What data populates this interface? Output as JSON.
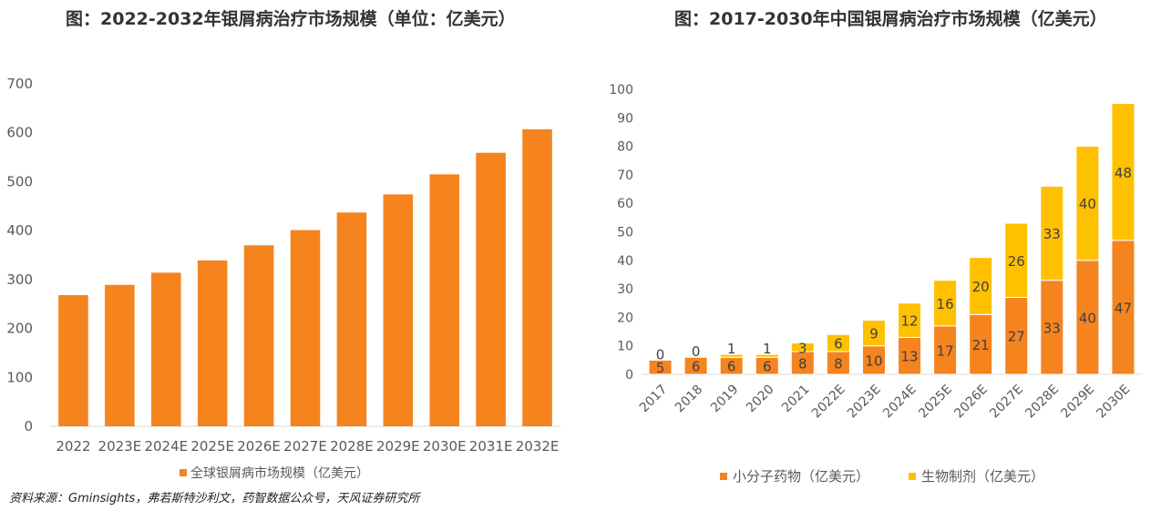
{
  "source_note": "资料来源：Gminsights，弗若斯特沙利文，药智数据公众号，天风证券研究所",
  "chart_data": [
    {
      "type": "bar",
      "title": "图：2022-2032年银屑病治疗市场规模（单位：亿美元）",
      "categories": [
        "2022",
        "2023E",
        "2024E",
        "2025E",
        "2026E",
        "2027E",
        "2028E",
        "2029E",
        "2030E",
        "2031E",
        "2032E"
      ],
      "series": [
        {
          "name": "全球银屑病市场规模（亿美元）",
          "values": [
            268,
            289,
            314,
            339,
            370,
            401,
            437,
            474,
            515,
            559,
            607
          ]
        }
      ],
      "yticks": [
        "0",
        "100",
        "200",
        "300",
        "400",
        "500",
        "600",
        "700"
      ],
      "ylim": [
        0,
        700
      ],
      "grid": false,
      "legend": "bottom",
      "colors": {
        "bar": "#F5841F"
      }
    },
    {
      "type": "bar",
      "stacked": true,
      "title": "图：2017-2030年中国银屑病治疗市场规模（亿美元）",
      "categories": [
        "2017",
        "2018",
        "2019",
        "2020",
        "2021",
        "2022E",
        "2023E",
        "2024E",
        "2025E",
        "2026E",
        "2027E",
        "2028E",
        "2029E",
        "2030E"
      ],
      "series": [
        {
          "name": "小分子药物（亿美元）",
          "values": [
            5,
            6,
            6,
            6,
            8,
            8,
            10,
            13,
            17,
            21,
            27,
            33,
            40,
            47
          ]
        },
        {
          "name": "生物制剂（亿美元）",
          "values": [
            0,
            0,
            1,
            1,
            3,
            6,
            9,
            12,
            16,
            20,
            26,
            33,
            40,
            48
          ]
        }
      ],
      "yticks": [
        "0",
        "10",
        "20",
        "30",
        "40",
        "50",
        "60",
        "70",
        "80",
        "90",
        "100"
      ],
      "ylim": [
        0,
        100
      ],
      "grid": false,
      "legend": "bottom",
      "colors": {
        "series1": "#F5841F",
        "series2": "#FFC000",
        "label": "#404040"
      }
    }
  ]
}
